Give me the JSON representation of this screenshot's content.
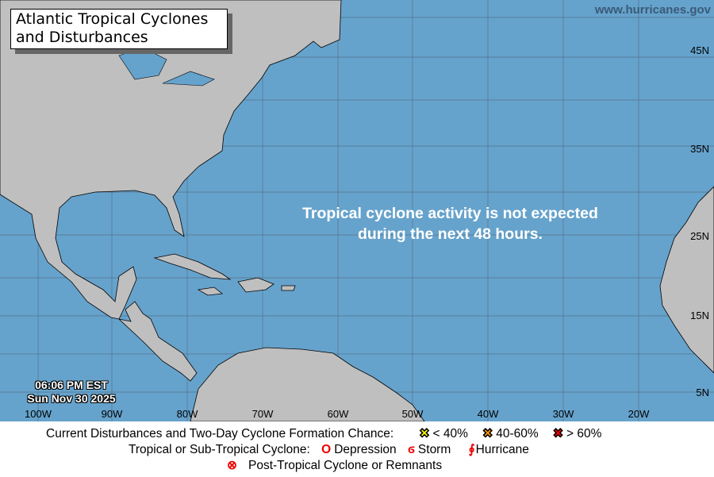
{
  "title": "Atlantic Tropical Cyclones and Disturbances",
  "title_line1": "Atlantic Tropical Cyclones",
  "title_line2": "and Disturbances",
  "website": "www.hurricanes.gov",
  "message_line1": "Tropical cyclone activity is not expected",
  "message_line2": "during the next 48 hours.",
  "time": "06:06 PM EST",
  "date": "Sun Nov 30 2025",
  "longitude_labels": [
    "100W",
    "90W",
    "80W",
    "70W",
    "60W",
    "50W",
    "40W",
    "30W",
    "20W"
  ],
  "latitude_labels": [
    "45N",
    "35N",
    "25N",
    "15N",
    "5N"
  ],
  "colors": {
    "ocean": "#66a3cc",
    "land": "#bfbfbf",
    "low": "#ffff00",
    "medium": "#ff9900",
    "high": "#ff0000",
    "cyclone": "#ff0000"
  },
  "legend": {
    "disturbances_label": "Current Disturbances and Two-Day Cyclone Formation Chance:",
    "low": "< 40%",
    "medium": "40-60%",
    "high": "> 60%",
    "cyclone_label": "Tropical or Sub-Tropical Cyclone:",
    "depression": "Depression",
    "storm": "Storm",
    "hurricane": "Hurricane",
    "post_tropical": "Post-Tropical Cyclone or Remnants"
  }
}
